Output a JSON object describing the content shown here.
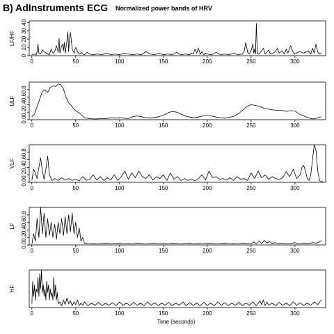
{
  "figure": {
    "title": "B) AdInstruments ECG",
    "subtitle": "Normalized power bands of HRV",
    "xlabel": "Time (seconds)"
  },
  "chart_data": [
    {
      "type": "line",
      "ylabel": "LF/HF",
      "xlim": [
        -3,
        335
      ],
      "ylim": [
        0,
        42
      ],
      "xticks": [
        0,
        50,
        100,
        150,
        200,
        250,
        300
      ],
      "yticks": [
        0,
        10,
        20,
        30,
        40
      ],
      "series": [
        {
          "x": [
            0,
            3,
            5,
            6,
            7,
            8,
            10,
            12,
            15,
            18,
            20,
            22,
            24,
            26,
            28,
            30,
            31,
            32,
            33,
            35,
            36,
            37,
            38,
            40,
            41,
            42,
            43,
            44,
            46,
            48,
            50,
            52,
            54,
            55,
            56,
            58,
            60,
            63,
            66,
            70,
            75,
            80,
            85,
            88,
            90,
            95,
            100,
            105,
            110,
            115,
            120,
            125,
            130,
            135,
            140,
            145,
            150,
            155,
            160,
            165,
            170,
            175,
            180,
            182,
            184,
            186,
            188,
            190,
            192,
            194,
            196,
            198,
            200,
            205,
            210,
            215,
            220,
            225,
            230,
            235,
            240,
            242,
            244,
            246,
            248,
            250,
            252,
            253,
            254,
            255,
            256,
            257,
            258,
            260,
            262,
            264,
            266,
            268,
            270,
            272,
            275,
            278,
            280,
            282,
            285,
            288,
            290,
            292,
            295,
            298,
            300,
            305,
            310,
            315,
            318,
            320,
            322,
            324,
            326,
            328,
            330
          ],
          "y": [
            1,
            2,
            1,
            5,
            14,
            3,
            2,
            7,
            4,
            2,
            1,
            8,
            3,
            5,
            12,
            4,
            21,
            3,
            9,
            14,
            6,
            16,
            3,
            18,
            29,
            5,
            22,
            28,
            8,
            3,
            10,
            5,
            2,
            2,
            4,
            2,
            1,
            4,
            2,
            1,
            2,
            1,
            3,
            2,
            1,
            2,
            1,
            3,
            2,
            1,
            2,
            1,
            5,
            2,
            1,
            3,
            1,
            2,
            1,
            4,
            1,
            2,
            1,
            3,
            2,
            8,
            3,
            9,
            2,
            5,
            1,
            3,
            2,
            1,
            4,
            1,
            2,
            1,
            3,
            1,
            2,
            5,
            16,
            4,
            2,
            6,
            14,
            3,
            8,
            2,
            39,
            5,
            2,
            3,
            6,
            9,
            2,
            4,
            7,
            2,
            3,
            5,
            9,
            3,
            6,
            2,
            8,
            3,
            12,
            4,
            2,
            5,
            3,
            6,
            2,
            9,
            3,
            14,
            4,
            2,
            3
          ]
        }
      ]
    },
    {
      "type": "line",
      "ylabel": "ULF",
      "xlim": [
        -3,
        335
      ],
      "ylim": [
        0,
        1
      ],
      "xticks": [
        0,
        50,
        100,
        150,
        200,
        250,
        300
      ],
      "yticks": [
        0,
        0.2,
        0.4,
        0.6,
        0.8
      ],
      "ytick_labels": [
        "0.0",
        "0.2",
        "0.4",
        "0.6",
        "0.8"
      ],
      "series": [
        {
          "x": [
            0,
            3,
            6,
            9,
            12,
            15,
            18,
            21,
            24,
            27,
            30,
            33,
            36,
            39,
            42,
            45,
            48,
            51,
            54,
            57,
            60,
            65,
            70,
            75,
            80,
            85,
            90,
            95,
            100,
            105,
            110,
            115,
            120,
            125,
            130,
            135,
            140,
            145,
            150,
            155,
            160,
            165,
            170,
            175,
            180,
            185,
            190,
            195,
            200,
            205,
            210,
            215,
            220,
            225,
            230,
            235,
            240,
            245,
            250,
            255,
            260,
            265,
            270,
            275,
            280,
            285,
            290,
            295,
            300,
            305,
            310,
            315,
            320,
            325,
            330
          ],
          "y": [
            0.08,
            0.15,
            0.35,
            0.55,
            0.75,
            0.8,
            0.72,
            0.85,
            0.9,
            0.88,
            0.95,
            0.93,
            0.82,
            0.6,
            0.45,
            0.38,
            0.28,
            0.22,
            0.18,
            0.12,
            0.05,
            0.03,
            0.02,
            0.02,
            0.03,
            0.03,
            0.05,
            0.04,
            0.05,
            0.04,
            0.03,
            0.08,
            0.1,
            0.08,
            0.05,
            0.04,
            0.06,
            0.08,
            0.12,
            0.18,
            0.22,
            0.2,
            0.15,
            0.1,
            0.07,
            0.05,
            0.07,
            0.1,
            0.12,
            0.1,
            0.07,
            0.05,
            0.04,
            0.06,
            0.09,
            0.15,
            0.25,
            0.35,
            0.4,
            0.38,
            0.35,
            0.3,
            0.28,
            0.26,
            0.25,
            0.25,
            0.22,
            0.24,
            0.23,
            0.15,
            0.1,
            0.05,
            0.02,
            0.04,
            0.08
          ]
        }
      ]
    },
    {
      "type": "line",
      "ylabel": "VLF",
      "xlim": [
        -3,
        335
      ],
      "ylim": [
        0,
        1
      ],
      "xticks": [
        0,
        50,
        100,
        150,
        200,
        250,
        300
      ],
      "yticks": [
        0,
        0.2,
        0.4,
        0.6,
        0.8
      ],
      "ytick_labels": [
        "0.0",
        "0.2",
        "0.4",
        "0.6",
        "0.8"
      ],
      "series": [
        {
          "x": [
            0,
            2,
            4,
            6,
            8,
            10,
            12,
            14,
            16,
            18,
            20,
            23,
            26,
            30,
            34,
            38,
            42,
            46,
            50,
            54,
            58,
            62,
            66,
            70,
            74,
            78,
            82,
            86,
            90,
            94,
            98,
            102,
            106,
            110,
            114,
            118,
            122,
            126,
            130,
            134,
            138,
            142,
            146,
            150,
            154,
            158,
            162,
            166,
            170,
            174,
            178,
            182,
            186,
            190,
            194,
            198,
            202,
            206,
            210,
            214,
            218,
            222,
            226,
            230,
            234,
            238,
            242,
            246,
            250,
            254,
            258,
            262,
            266,
            270,
            274,
            278,
            282,
            286,
            290,
            294,
            298,
            302,
            306,
            308,
            310,
            312,
            314,
            316,
            318,
            320,
            322,
            324,
            326,
            328,
            330,
            332
          ],
          "y": [
            0.05,
            0.35,
            0.25,
            0.1,
            0.4,
            0.65,
            0.3,
            0.08,
            0.35,
            0.7,
            0.2,
            0.05,
            0.1,
            0.05,
            0.12,
            0.06,
            0.1,
            0.05,
            0.08,
            0.04,
            0.15,
            0.05,
            0.08,
            0.2,
            0.06,
            0.15,
            0.05,
            0.12,
            0.06,
            0.2,
            0.05,
            0.15,
            0.3,
            0.08,
            0.25,
            0.12,
            0.3,
            0.15,
            0.1,
            0.2,
            0.06,
            0.15,
            0.1,
            0.2,
            0.05,
            0.25,
            0.08,
            0.15,
            0.05,
            0.1,
            0.05,
            0.08,
            0.04,
            0.1,
            0.2,
            0.06,
            0.3,
            0.12,
            0.15,
            0.08,
            0.1,
            0.06,
            0.12,
            0.05,
            0.15,
            0.08,
            0.1,
            0.05,
            0.25,
            0.1,
            0.3,
            0.12,
            0.2,
            0.08,
            0.15,
            0.1,
            0.08,
            0.12,
            0.28,
            0.15,
            0.35,
            0.1,
            0.2,
            0.4,
            0.45,
            0.3,
            0.1,
            0.05,
            0.2,
            0.6,
            1.0,
            0.85,
            0.3,
            0.05,
            0.02,
            0.02
          ]
        }
      ]
    },
    {
      "type": "line",
      "ylabel": "LF",
      "xlim": [
        -3,
        335
      ],
      "ylim": [
        0,
        1
      ],
      "xticks": [
        0,
        50,
        100,
        150,
        200,
        250,
        300
      ],
      "yticks": [
        0,
        0.2,
        0.4,
        0.6,
        0.8
      ],
      "ytick_labels": [
        "0.0",
        "0.2",
        "0.4",
        "0.6",
        "0.8"
      ],
      "series": [
        {
          "x": [
            0,
            2,
            4,
            6,
            8,
            10,
            12,
            14,
            16,
            18,
            20,
            22,
            24,
            26,
            28,
            30,
            32,
            34,
            36,
            38,
            40,
            42,
            44,
            46,
            48,
            50,
            52,
            54,
            56,
            58,
            60,
            65,
            70,
            75,
            80,
            85,
            90,
            95,
            100,
            105,
            110,
            115,
            120,
            125,
            130,
            135,
            140,
            145,
            150,
            155,
            160,
            165,
            170,
            175,
            180,
            185,
            190,
            195,
            200,
            205,
            210,
            215,
            220,
            225,
            230,
            235,
            240,
            245,
            250,
            253,
            256,
            259,
            262,
            265,
            268,
            271,
            274,
            277,
            280,
            285,
            290,
            295,
            300,
            305,
            310,
            315,
            320,
            325,
            328,
            330
          ],
          "y": [
            0.02,
            0.3,
            0.1,
            0.7,
            0.2,
            1.0,
            0.3,
            0.85,
            0.2,
            0.7,
            0.25,
            0.6,
            0.2,
            0.55,
            0.15,
            0.6,
            0.3,
            0.7,
            0.25,
            0.75,
            0.3,
            0.8,
            0.35,
            0.85,
            0.3,
            0.6,
            0.2,
            0.45,
            0.1,
            0.2,
            0.05,
            0.03,
            0.04,
            0.03,
            0.04,
            0.05,
            0.03,
            0.04,
            0.05,
            0.03,
            0.04,
            0.03,
            0.05,
            0.04,
            0.03,
            0.04,
            0.05,
            0.03,
            0.04,
            0.03,
            0.05,
            0.04,
            0.03,
            0.04,
            0.05,
            0.03,
            0.04,
            0.03,
            0.05,
            0.04,
            0.03,
            0.04,
            0.05,
            0.03,
            0.04,
            0.03,
            0.05,
            0.04,
            0.03,
            0.08,
            0.03,
            0.1,
            0.04,
            0.12,
            0.05,
            0.09,
            0.03,
            0.06,
            0.04,
            0.05,
            0.03,
            0.04,
            0.06,
            0.03,
            0.05,
            0.04,
            0.06,
            0.05,
            0.08,
            0.12
          ]
        }
      ]
    },
    {
      "type": "line",
      "ylabel": "HF",
      "xlim": [
        -3,
        335
      ],
      "ylim": [
        0,
        1
      ],
      "xticks": [
        0,
        50,
        100,
        150,
        200,
        250,
        300
      ],
      "yticks": [],
      "series": [
        {
          "x": [
            0,
            1,
            2,
            3,
            4,
            5,
            6,
            7,
            8,
            9,
            10,
            11,
            12,
            13,
            14,
            15,
            16,
            17,
            18,
            19,
            20,
            21,
            22,
            23,
            24,
            25,
            26,
            27,
            28,
            29,
            30,
            32,
            34,
            36,
            38,
            40,
            42,
            44,
            46,
            48,
            50,
            52,
            54,
            56,
            58,
            60,
            64,
            68,
            72,
            76,
            80,
            84,
            88,
            92,
            96,
            100,
            104,
            108,
            112,
            116,
            120,
            124,
            128,
            132,
            136,
            140,
            144,
            148,
            152,
            156,
            160,
            164,
            168,
            172,
            176,
            180,
            184,
            188,
            192,
            196,
            200,
            204,
            208,
            212,
            216,
            220,
            224,
            228,
            232,
            236,
            240,
            244,
            248,
            252,
            256,
            260,
            262,
            264,
            266,
            268,
            270,
            274,
            278,
            282,
            286,
            290,
            294,
            298,
            302,
            306,
            310,
            314,
            318,
            322,
            326,
            330
          ],
          "y": [
            0.1,
            0.7,
            0.3,
            0.6,
            0.2,
            0.5,
            0.4,
            0.8,
            0.3,
            0.9,
            0.5,
            1.0,
            0.4,
            0.6,
            0.3,
            0.5,
            0.2,
            0.7,
            0.4,
            0.6,
            0.2,
            0.5,
            0.3,
            0.4,
            0.2,
            0.8,
            0.3,
            0.6,
            0.2,
            0.4,
            0.1,
            0.15,
            0.05,
            0.2,
            0.08,
            0.25,
            0.1,
            0.18,
            0.05,
            0.15,
            0.08,
            0.2,
            0.05,
            0.12,
            0.06,
            0.15,
            0.05,
            0.12,
            0.06,
            0.14,
            0.05,
            0.12,
            0.06,
            0.13,
            0.05,
            0.15,
            0.06,
            0.12,
            0.05,
            0.14,
            0.06,
            0.12,
            0.05,
            0.15,
            0.06,
            0.13,
            0.05,
            0.12,
            0.06,
            0.14,
            0.05,
            0.12,
            0.06,
            0.15,
            0.05,
            0.13,
            0.06,
            0.12,
            0.05,
            0.14,
            0.06,
            0.12,
            0.05,
            0.15,
            0.06,
            0.13,
            0.05,
            0.12,
            0.06,
            0.14,
            0.05,
            0.12,
            0.06,
            0.15,
            0.05,
            0.18,
            0.08,
            0.2,
            0.05,
            0.15,
            0.06,
            0.12,
            0.05,
            0.14,
            0.06,
            0.12,
            0.05,
            0.15,
            0.06,
            0.13,
            0.05,
            0.12,
            0.06,
            0.15,
            0.08,
            0.2
          ]
        }
      ]
    }
  ]
}
